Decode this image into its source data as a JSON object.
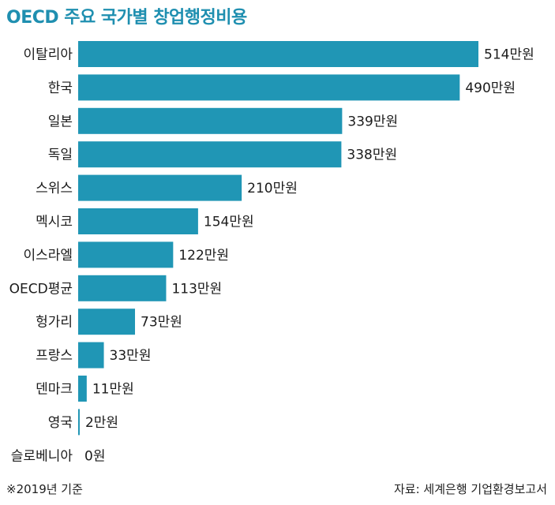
{
  "title": "OECD 주요 국가별 창업행정비용",
  "note": "※2019년 기준",
  "source": "자료: 세계은행 기업환경보고서",
  "colors": {
    "bar": "#2096b5",
    "title": "#1f8fb0"
  },
  "chart_data": {
    "type": "bar",
    "orientation": "horizontal",
    "title": "OECD 주요 국가별 창업행정비용",
    "unit": "만원",
    "categories": [
      "이탈리아",
      "한국",
      "일본",
      "독일",
      "스위스",
      "멕시코",
      "이스라엘",
      "OECD평균",
      "헝가리",
      "프랑스",
      "덴마크",
      "영국",
      "슬로베니아"
    ],
    "values": [
      514,
      490,
      339,
      338,
      210,
      154,
      122,
      113,
      73,
      33,
      11,
      2,
      0
    ],
    "value_labels": [
      "514만원",
      "490만원",
      "339만원",
      "338만원",
      "210만원",
      "154만원",
      "122만원",
      "113만원",
      "73만원",
      "33만원",
      "11만원",
      "2만원",
      "0원"
    ],
    "xlim": [
      0,
      514
    ],
    "grid": false,
    "legend": "none"
  }
}
